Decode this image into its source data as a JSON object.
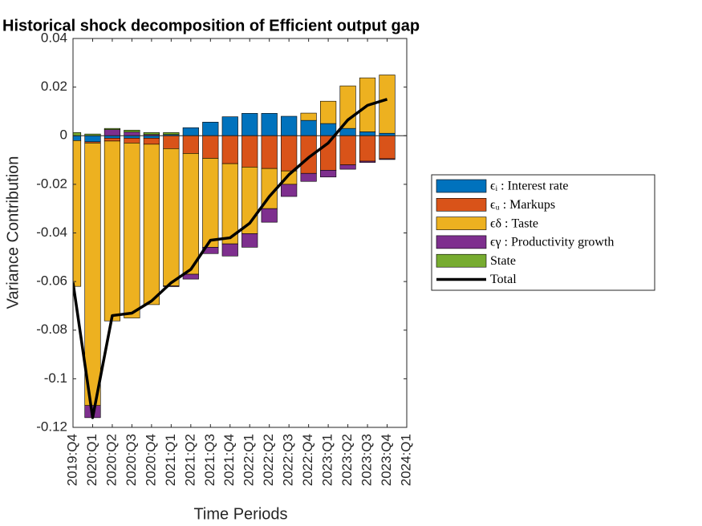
{
  "chart_data": {
    "type": "bar",
    "title": "Historical shock decomposition of Efficient output gap",
    "xlabel": "Time Periods",
    "ylabel": "Variance Contribution",
    "categories": [
      "2019:Q4",
      "2020:Q1",
      "2020:Q2",
      "2020:Q3",
      "2020:Q4",
      "2021:Q1",
      "2021:Q2",
      "2021:Q3",
      "2021:Q4",
      "2022:Q1",
      "2022:Q2",
      "2022:Q3",
      "2022:Q4",
      "2023:Q1",
      "2023:Q2",
      "2023:Q3",
      "2023:Q4",
      "2024:Q1"
    ],
    "series": [
      {
        "name": "ϵᵢ : Interest rate",
        "color": "#0072BD",
        "values": [
          -0.002,
          -0.0025,
          -0.001,
          -0.001,
          -0.001,
          0.0005,
          0.0033,
          0.0056,
          0.0078,
          0.0092,
          0.0092,
          0.008,
          0.0063,
          0.005,
          0.003,
          0.0016,
          0.001,
          null
        ]
      },
      {
        "name": "ϵᵤ : Markups",
        "color": "#D95319",
        "values": [
          0,
          -0.0005,
          -0.0012,
          -0.002,
          -0.0025,
          -0.0053,
          -0.0073,
          -0.0093,
          -0.0115,
          -0.0129,
          -0.0135,
          -0.0145,
          -0.0155,
          -0.0142,
          -0.012,
          -0.0105,
          -0.0095,
          null
        ]
      },
      {
        "name": "ϵδ : Taste",
        "color": "#EDB120",
        "values": [
          -0.06,
          -0.108,
          -0.074,
          -0.072,
          -0.066,
          -0.0565,
          -0.0497,
          -0.0366,
          -0.033,
          -0.0274,
          -0.0165,
          -0.0055,
          0.003,
          0.0092,
          0.0175,
          0.0222,
          0.024,
          null
        ]
      },
      {
        "name": "ϵγ : Productivity growth",
        "color": "#7E2F8E",
        "values": [
          0,
          -0.005,
          0.0025,
          0.0015,
          0.0005,
          -0.0003,
          -0.002,
          -0.0026,
          -0.005,
          -0.0056,
          -0.0056,
          -0.005,
          -0.0033,
          -0.0028,
          -0.0018,
          -0.0005,
          -0.0003,
          null
        ]
      },
      {
        "name": "State",
        "color": "#77AC30",
        "values": [
          0.0013,
          0.0007,
          0.0005,
          0.0008,
          0.0008,
          0.0008,
          0,
          0,
          0,
          0,
          0,
          0,
          0,
          0,
          0,
          0,
          0,
          null
        ]
      }
    ],
    "line": {
      "name": "Total",
      "color": "#000000",
      "values": [
        -0.0604,
        -0.116,
        -0.074,
        -0.073,
        -0.068,
        -0.0605,
        -0.055,
        -0.043,
        -0.042,
        -0.036,
        -0.025,
        -0.016,
        -0.009,
        -0.003,
        0.0065,
        0.0125,
        0.015,
        null
      ]
    },
    "ylim": [
      -0.12,
      0.04
    ],
    "yticks": [
      -0.12,
      -0.1,
      -0.08,
      -0.06,
      -0.04,
      -0.02,
      0,
      0.02,
      0.04
    ],
    "grid": false,
    "legend": "right"
  }
}
